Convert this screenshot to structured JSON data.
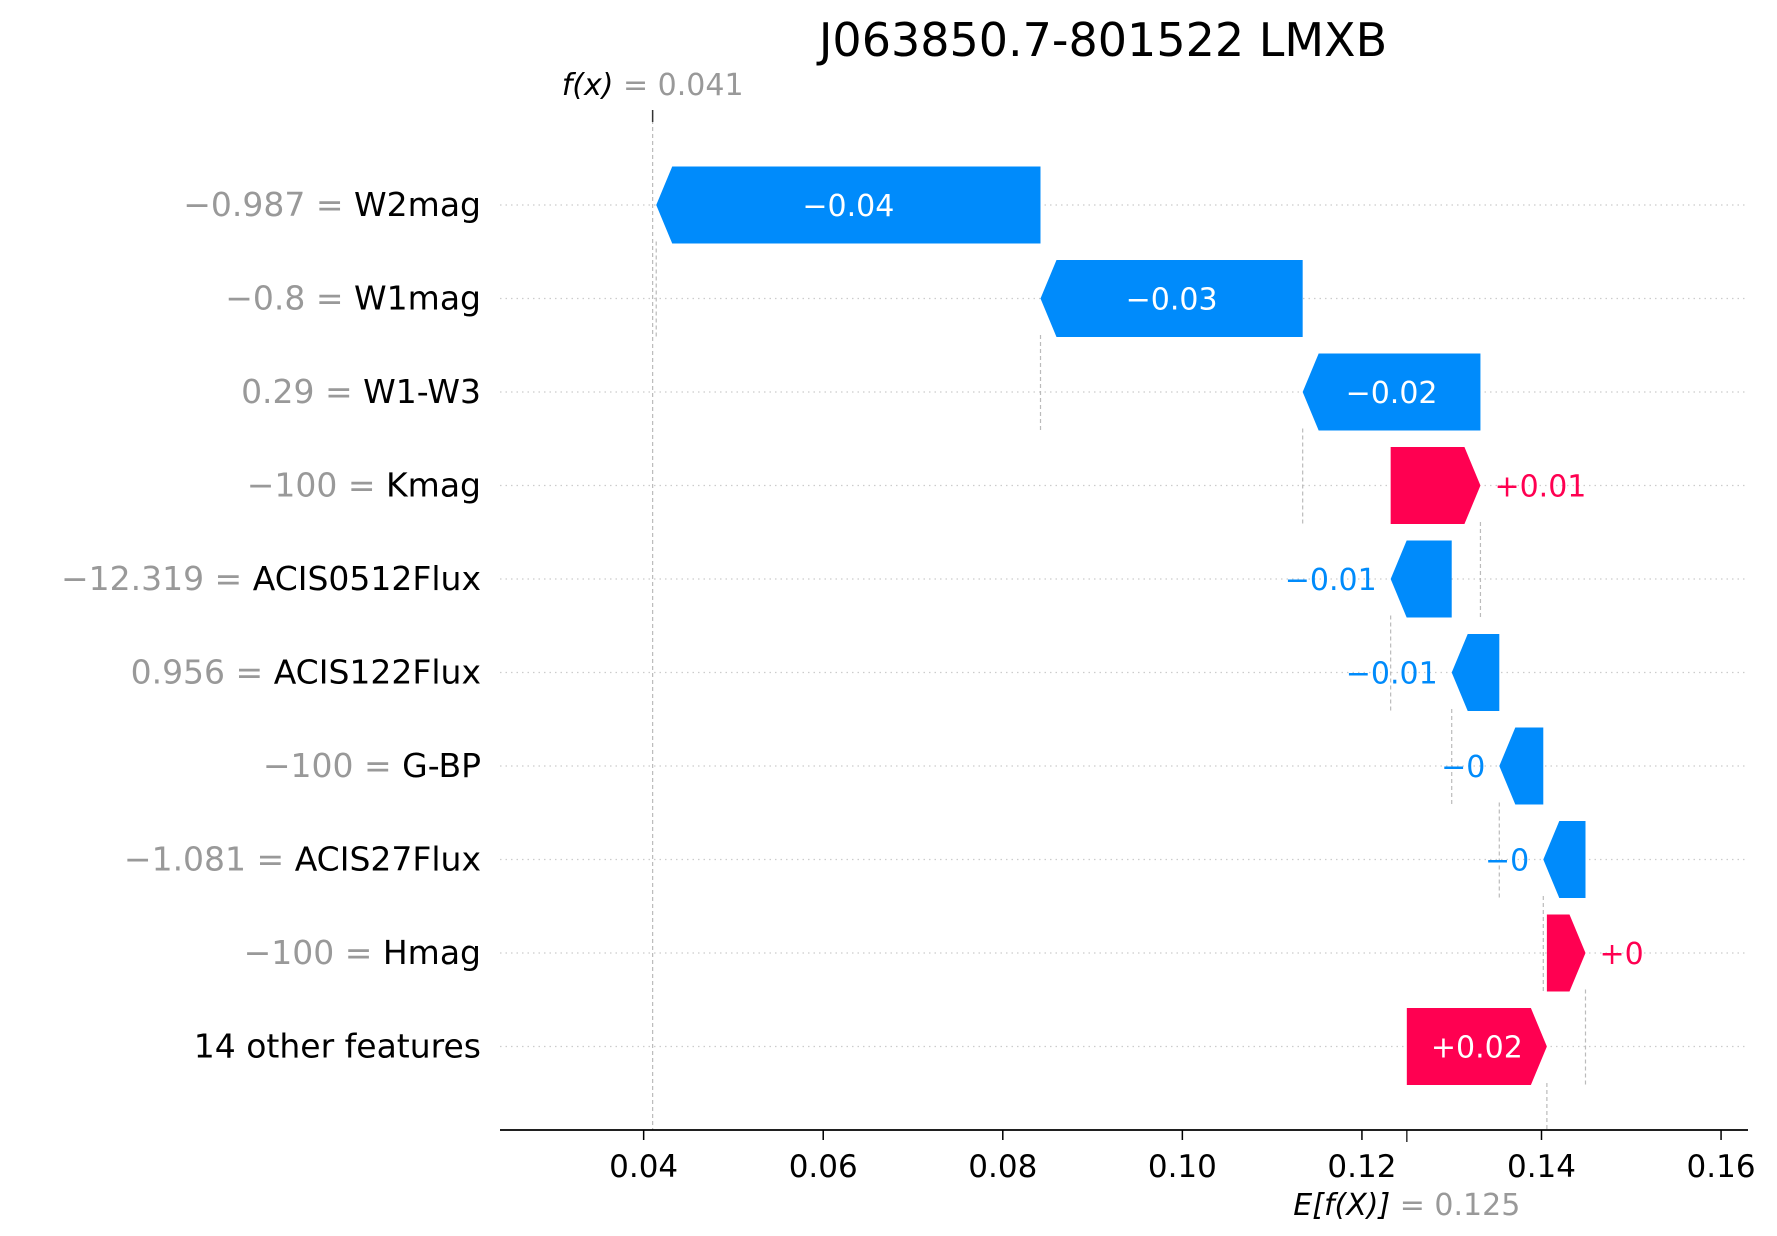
{
  "chart_data": {
    "type": "waterfall",
    "title": "J063850.7-801522 LMXB",
    "fx_label": "f(x)",
    "fx_value": 0.041,
    "fx_value_label": "0.041",
    "base_label": "E[f(X)]",
    "base_value": 0.125,
    "base_value_label": "0.125",
    "xlim": [
      0.024,
      0.163
    ],
    "x_ticks": [
      0.04,
      0.06,
      0.08,
      0.1,
      0.12,
      0.14,
      0.16
    ],
    "x_tick_labels": [
      "0.04",
      "0.06",
      "0.08",
      "0.10",
      "0.12",
      "0.14",
      "0.16"
    ],
    "colors": {
      "positive": "#ff0051",
      "negative": "#008bfb",
      "label_gray": "#999999"
    },
    "features": [
      {
        "value": "−0.987",
        "name": "W2mag",
        "start": 0.0842,
        "end": 0.0414,
        "contribution": "−0.04"
      },
      {
        "value": "−0.8",
        "name": "W1mag",
        "start": 0.1134,
        "end": 0.0842,
        "contribution": "−0.03"
      },
      {
        "value": "0.29",
        "name": "W1-W3",
        "start": 0.1332,
        "end": 0.1134,
        "contribution": "−0.02"
      },
      {
        "value": "−100",
        "name": "Kmag",
        "start": 0.1232,
        "end": 0.1332,
        "contribution": "+0.01"
      },
      {
        "value": "−12.319",
        "name": "ACIS0512Flux",
        "start": 0.13,
        "end": 0.1232,
        "contribution": "−0.01"
      },
      {
        "value": "0.956",
        "name": "ACIS122Flux",
        "start": 0.1353,
        "end": 0.13,
        "contribution": "−0.01"
      },
      {
        "value": "−100",
        "name": "G-BP",
        "start": 0.1402,
        "end": 0.1353,
        "contribution": "−0"
      },
      {
        "value": "−1.081",
        "name": "ACIS27Flux",
        "start": 0.1449,
        "end": 0.1402,
        "contribution": "−0"
      },
      {
        "value": "−100",
        "name": "Hmag",
        "start": 0.1406,
        "end": 0.1449,
        "contribution": "+0"
      },
      {
        "value": "",
        "name": "14 other features",
        "start": 0.125,
        "end": 0.1406,
        "contribution": "+0.02"
      }
    ]
  }
}
